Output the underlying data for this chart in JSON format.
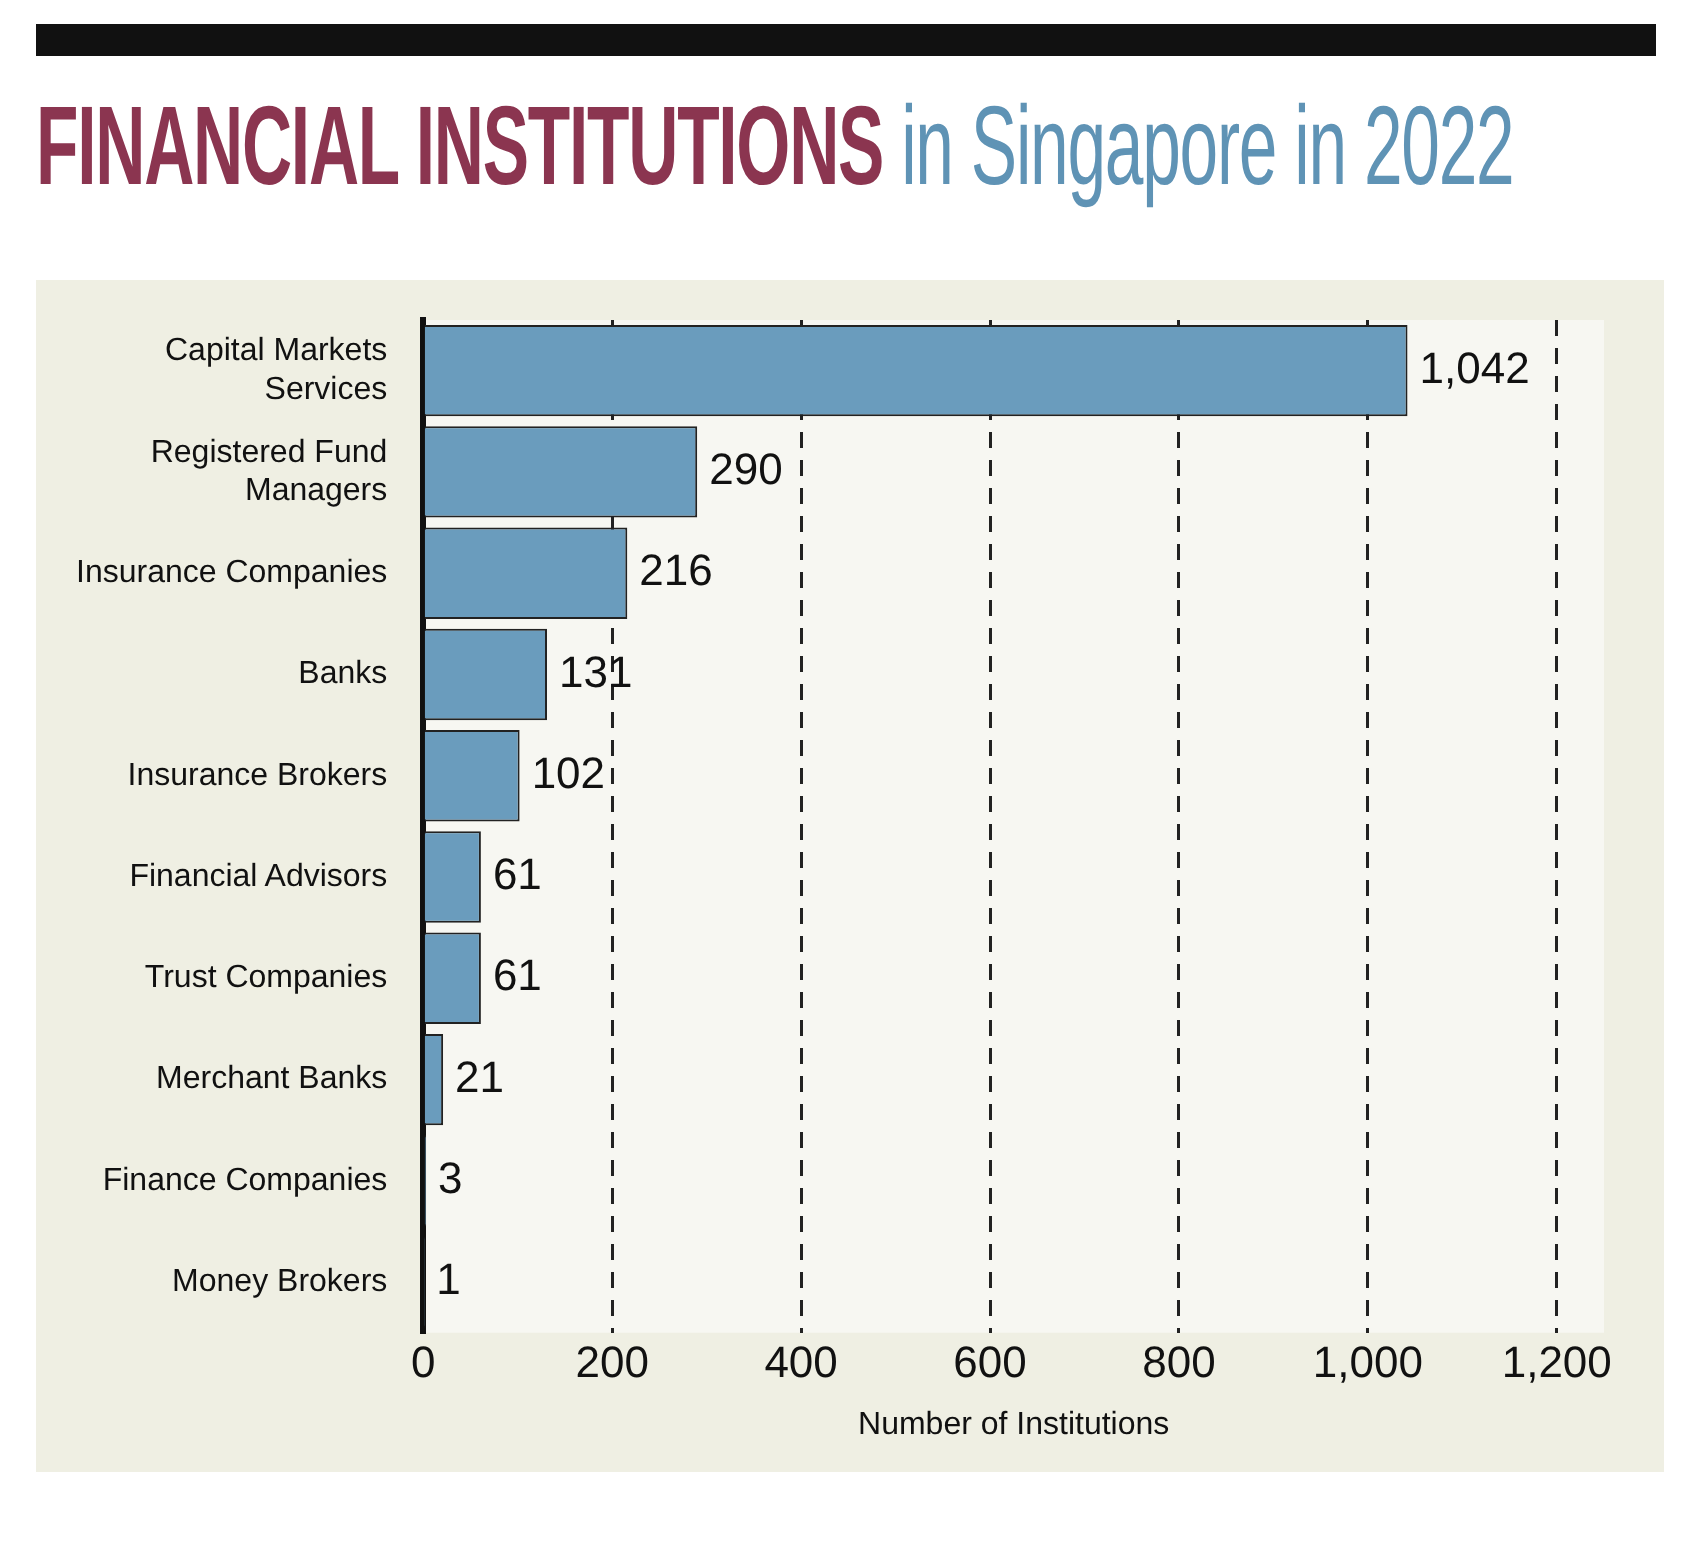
{
  "chart_data": {
    "type": "bar",
    "orientation": "horizontal",
    "title": "FINANCIAL INSTITUTIONS in Singapore in 2022",
    "xlabel": "Number of Institutions",
    "categories": [
      "Capital Markets Services",
      "Registered Fund Managers",
      "Insurance Companies",
      "Banks",
      "Insurance Brokers",
      "Financial Advisors",
      "Trust Companies",
      "Merchant Banks",
      "Finance Companies",
      "Money Brokers"
    ],
    "values": [
      1042,
      290,
      216,
      131,
      102,
      61,
      61,
      21,
      3,
      1
    ],
    "value_labels": [
      "1,042",
      "290",
      "216",
      "131",
      "102",
      "61",
      "61",
      "21",
      "3",
      "1"
    ],
    "color": "#6a9cbd",
    "xlim": [
      0,
      1250
    ],
    "xticks": [
      0,
      200,
      400,
      600,
      800,
      {
        "value": 1000,
        "label": "1,000"
      },
      {
        "value": 1200,
        "label": "1,200"
      }
    ],
    "grid": "x",
    "legend": false
  }
}
